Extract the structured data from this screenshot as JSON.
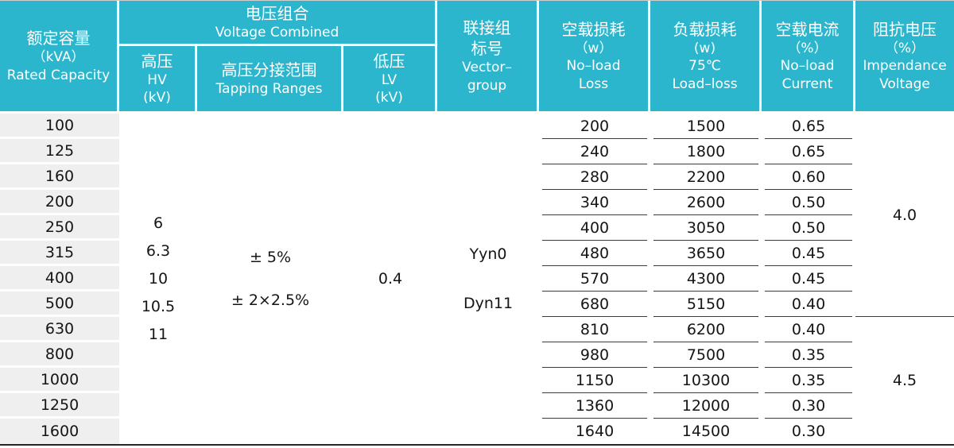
{
  "colors": {
    "header_bg": "#2cb6cd",
    "header_text": "#ffffff",
    "capacity_cell_bg": "#efefef",
    "body_text": "#151515",
    "row_line": "#3c3c3c"
  },
  "header": {
    "col_capacity": [
      "额定容量",
      "（kVA）",
      "Rated Capacity"
    ],
    "group_voltage": [
      "电压组合",
      "Voltage Combined"
    ],
    "col_hv": [
      "高压",
      "HV",
      "(kV)"
    ],
    "col_tapping": [
      "高压分接范围",
      "Tapping Ranges"
    ],
    "col_lv": [
      "低压",
      "LV",
      "(kV)"
    ],
    "col_vector": [
      "联接组",
      "标号",
      "Vector–",
      "group"
    ],
    "col_noload_loss": [
      "空载损耗",
      "（w）",
      "No–load",
      "Loss"
    ],
    "col_load_loss": [
      "负载损耗",
      "(w)",
      "75℃",
      "Load–loss"
    ],
    "col_noload_current": [
      "空载电流",
      "（%）",
      "No–load",
      "Current"
    ],
    "col_impedance": [
      "阻抗电压",
      "（%）",
      "Impendance",
      "Voltage"
    ]
  },
  "body": {
    "capacities": [
      "100",
      "125",
      "160",
      "200",
      "250",
      "315",
      "400",
      "500",
      "630",
      "800",
      "1000",
      "1250",
      "1600"
    ],
    "hv_values": [
      "6",
      "6.3",
      "10",
      "10.5",
      "11"
    ],
    "tapping_ranges": [
      "± 5%",
      "± 2×2.5%"
    ],
    "lv_value": "0.4",
    "vector_groups": [
      "Yyn0",
      "Dyn11"
    ],
    "no_load_loss": [
      "200",
      "240",
      "280",
      "340",
      "400",
      "480",
      "570",
      "680",
      "810",
      "980",
      "1150",
      "1360",
      "1640"
    ],
    "load_loss": [
      "1500",
      "1800",
      "2200",
      "2600",
      "3050",
      "3650",
      "4300",
      "5150",
      "6200",
      "7500",
      "10300",
      "12000",
      "14500"
    ],
    "no_load_current": [
      "0.65",
      "0.65",
      "0.60",
      "0.50",
      "0.50",
      "0.45",
      "0.45",
      "0.40",
      "0.40",
      "0.35",
      "0.35",
      "0.30",
      "0.30"
    ],
    "impedance_segments": [
      {
        "value": "4.0",
        "rows": 8
      },
      {
        "value": "4.5",
        "rows": 5
      }
    ]
  }
}
